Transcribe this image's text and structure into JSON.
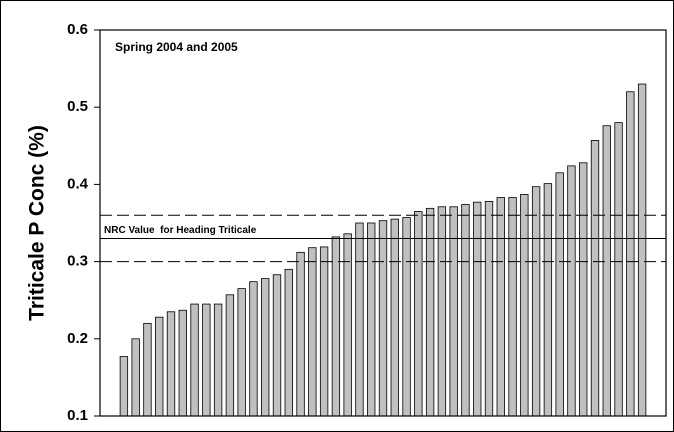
{
  "chart_data": {
    "type": "bar",
    "annotation": "Spring 2004 and 2005",
    "y_label": "Triticale P Conc (%)",
    "values": [
      0.177,
      0.2,
      0.22,
      0.228,
      0.235,
      0.237,
      0.245,
      0.245,
      0.245,
      0.257,
      0.265,
      0.274,
      0.278,
      0.283,
      0.29,
      0.312,
      0.318,
      0.319,
      0.332,
      0.336,
      0.35,
      0.35,
      0.353,
      0.355,
      0.357,
      0.365,
      0.369,
      0.371,
      0.371,
      0.374,
      0.377,
      0.378,
      0.383,
      0.383,
      0.387,
      0.397,
      0.401,
      0.415,
      0.424,
      0.428,
      0.457,
      0.476,
      0.48,
      0.52,
      0.53
    ],
    "color": "#c0c0c0",
    "ylim": [
      0.1,
      0.6
    ],
    "yticks": [
      0.1,
      0.2,
      0.3,
      0.4,
      0.5,
      0.6
    ],
    "reference_lines": [
      {
        "value": 0.36,
        "style": "dashed"
      },
      {
        "value": 0.33,
        "style": "solid",
        "label": "NRC Value  for Heading Triticale"
      },
      {
        "value": 0.3,
        "style": "dashed"
      }
    ]
  }
}
